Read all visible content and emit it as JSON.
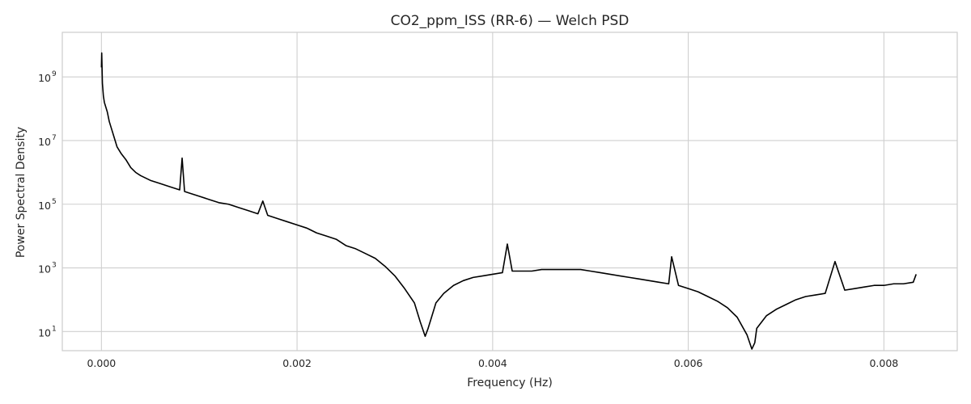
{
  "chart_data": {
    "type": "line",
    "title": "CO2_ppm_ISS (RR-6) — Welch PSD",
    "xlabel": "Frequency (Hz)",
    "ylabel": "Power Spectral Density",
    "xlim": [
      -0.0004,
      0.00875
    ],
    "ylim_log10": [
      0.4,
      10.4
    ],
    "yscale": "log",
    "grid": true,
    "legend": "none",
    "line_color": "#000000",
    "x_ticks": [
      {
        "value": 0.0,
        "label": "0.000"
      },
      {
        "value": 0.002,
        "label": "0.002"
      },
      {
        "value": 0.004,
        "label": "0.004"
      },
      {
        "value": 0.006,
        "label": "0.006"
      },
      {
        "value": 0.008,
        "label": "0.008"
      }
    ],
    "y_ticks": [
      {
        "log10": 1,
        "base": "10",
        "exp": "1"
      },
      {
        "log10": 3,
        "base": "10",
        "exp": "3"
      },
      {
        "log10": 5,
        "base": "10",
        "exp": "5"
      },
      {
        "log10": 7,
        "base": "10",
        "exp": "7"
      },
      {
        "log10": 9,
        "base": "10",
        "exp": "9"
      }
    ],
    "series": [
      {
        "x": [
          0.0,
          3e-06,
          7e-06,
          1e-05,
          1.5e-05,
          2e-05,
          3e-05,
          4e-05,
          6e-05,
          8e-05,
          0.0001,
          0.00013,
          0.00016,
          0.0002,
          0.00025,
          0.0003,
          0.00035,
          0.0004,
          0.0005,
          0.0006,
          0.0007,
          0.0008,
          0.000825,
          0.00085,
          0.0009,
          0.001,
          0.0011,
          0.0012,
          0.0013,
          0.0014,
          0.0015,
          0.0016,
          0.00165,
          0.0017,
          0.0018,
          0.0019,
          0.002,
          0.0021,
          0.0022,
          0.0023,
          0.0024,
          0.0025,
          0.0026,
          0.0027,
          0.0028,
          0.0029,
          0.003,
          0.0031,
          0.0032,
          0.00326,
          0.00331,
          0.00334,
          0.00337,
          0.00342,
          0.0035,
          0.0036,
          0.0037,
          0.0038,
          0.0039,
          0.004,
          0.0041,
          0.00415,
          0.0042,
          0.0043,
          0.0044,
          0.0045,
          0.0046,
          0.0047,
          0.0048,
          0.0049,
          0.005,
          0.0051,
          0.0052,
          0.0053,
          0.0054,
          0.0055,
          0.0056,
          0.0057,
          0.0058,
          0.00583,
          0.0059,
          0.006,
          0.0061,
          0.0062,
          0.0063,
          0.0064,
          0.0065,
          0.0066,
          0.00665,
          0.00668,
          0.0067,
          0.0068,
          0.0069,
          0.007,
          0.0071,
          0.0072,
          0.0073,
          0.0074,
          0.0075,
          0.0076,
          0.0077,
          0.0078,
          0.0079,
          0.008,
          0.0081,
          0.0082,
          0.0083,
          0.00833
        ],
        "y_log10": [
          9.3,
          9.75,
          9.2,
          8.8,
          8.6,
          8.4,
          8.2,
          8.1,
          7.9,
          7.6,
          7.4,
          7.1,
          6.8,
          6.6,
          6.4,
          6.15,
          6.0,
          5.9,
          5.75,
          5.65,
          5.55,
          5.45,
          6.45,
          5.4,
          5.35,
          5.25,
          5.15,
          5.05,
          5.0,
          4.9,
          4.8,
          4.7,
          5.1,
          4.65,
          4.55,
          4.45,
          4.35,
          4.25,
          4.1,
          4.0,
          3.9,
          3.7,
          3.6,
          3.45,
          3.3,
          3.05,
          2.75,
          2.35,
          1.9,
          1.3,
          0.85,
          1.1,
          1.4,
          1.9,
          2.2,
          2.45,
          2.6,
          2.7,
          2.75,
          2.8,
          2.85,
          3.75,
          2.9,
          2.9,
          2.9,
          2.95,
          2.95,
          2.95,
          2.95,
          2.95,
          2.9,
          2.85,
          2.8,
          2.75,
          2.7,
          2.65,
          2.6,
          2.55,
          2.5,
          3.35,
          2.45,
          2.35,
          2.25,
          2.1,
          1.95,
          1.75,
          1.45,
          0.9,
          0.45,
          0.65,
          1.1,
          1.5,
          1.7,
          1.85,
          2.0,
          2.1,
          2.15,
          2.2,
          3.2,
          2.3,
          2.35,
          2.4,
          2.45,
          2.45,
          2.5,
          2.5,
          2.55,
          2.8
        ]
      }
    ]
  }
}
